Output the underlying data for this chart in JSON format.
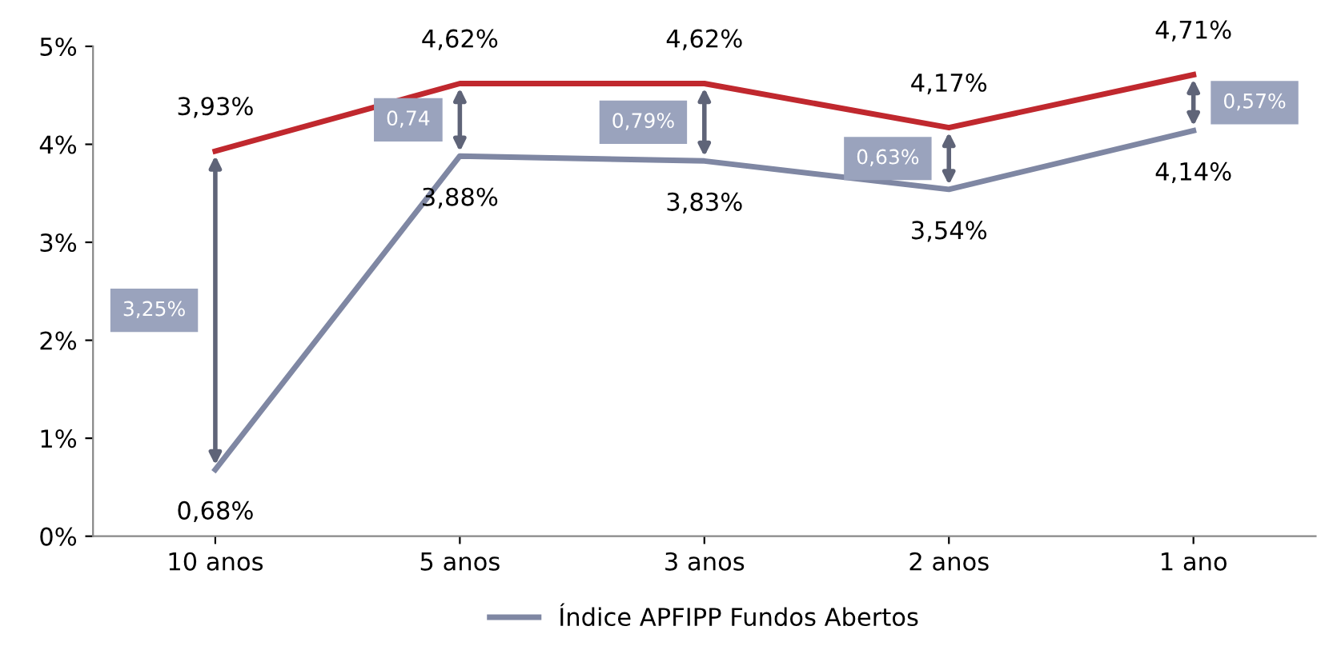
{
  "chart_data": {
    "type": "line",
    "categories": [
      "10 anos",
      "5 anos",
      "3 anos",
      "2 anos",
      "1 ano"
    ],
    "series": [
      {
        "color": "#c0282e",
        "values": [
          3.93,
          4.62,
          4.62,
          4.17,
          4.71
        ],
        "value_labels": [
          "3,93%",
          "4,62%",
          "4,62%",
          "4,17%",
          "4,71%"
        ]
      },
      {
        "name": "Índice APFIPP Fundos Abertos",
        "color": "#7f87a3",
        "values": [
          0.68,
          3.88,
          3.83,
          3.54,
          4.14
        ],
        "value_labels": [
          "0,68%",
          "3,88%",
          "3,83%",
          "3,54%",
          "4,14%"
        ]
      }
    ],
    "annotations": [
      "3,25%",
      "0,74",
      "0,79%",
      "0,63%",
      "0,57%"
    ],
    "ylim": [
      0,
      5
    ],
    "yticks": [
      {
        "value": 0,
        "label": "0%"
      },
      {
        "value": 1,
        "label": "1%"
      },
      {
        "value": 2,
        "label": "2%"
      },
      {
        "value": 3,
        "label": "3%"
      },
      {
        "value": 4,
        "label": "4%"
      },
      {
        "value": 5,
        "label": "5%"
      }
    ],
    "grid": false,
    "legend": "bottom",
    "marker": "none",
    "line_style": "solid"
  }
}
